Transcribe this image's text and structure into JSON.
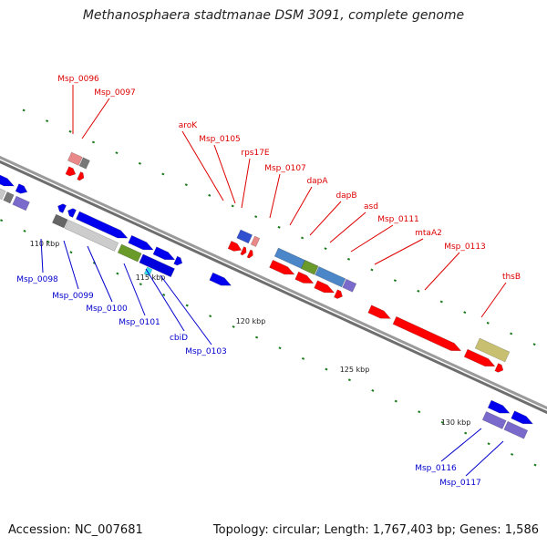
{
  "title": "Methanosphaera stadtmanae DSM 3091, complete genome",
  "footer": {
    "accession": "Accession: NC_007681",
    "topology": "Topology: circular; Length: 1,767,403 bp; Genes: 1,586"
  },
  "colors": {
    "plus_label": "#dd0000",
    "minus_label": "#0000cc",
    "tick": "#1a7a1a",
    "backbone": "#8c8c8c"
  },
  "scale_labels": [
    "110 kbp",
    "115 kbp",
    "120 kbp",
    "125 kbp",
    "130 kbp"
  ],
  "top_labels": [
    "Msp_0096",
    "Msp_0097",
    "aroK",
    "Msp_0105",
    "rps17E",
    "Msp_0107",
    "dapA",
    "dapB",
    "asd",
    "Msp_0111",
    "mtaA2",
    "Msp_0113",
    "thsB"
  ],
  "bottom_labels": [
    "Msp_0098",
    "Msp_0099",
    "Msp_0100",
    "Msp_0101",
    "cbiD",
    "Msp_0103",
    "Msp_0116",
    "Msp_0117"
  ]
}
